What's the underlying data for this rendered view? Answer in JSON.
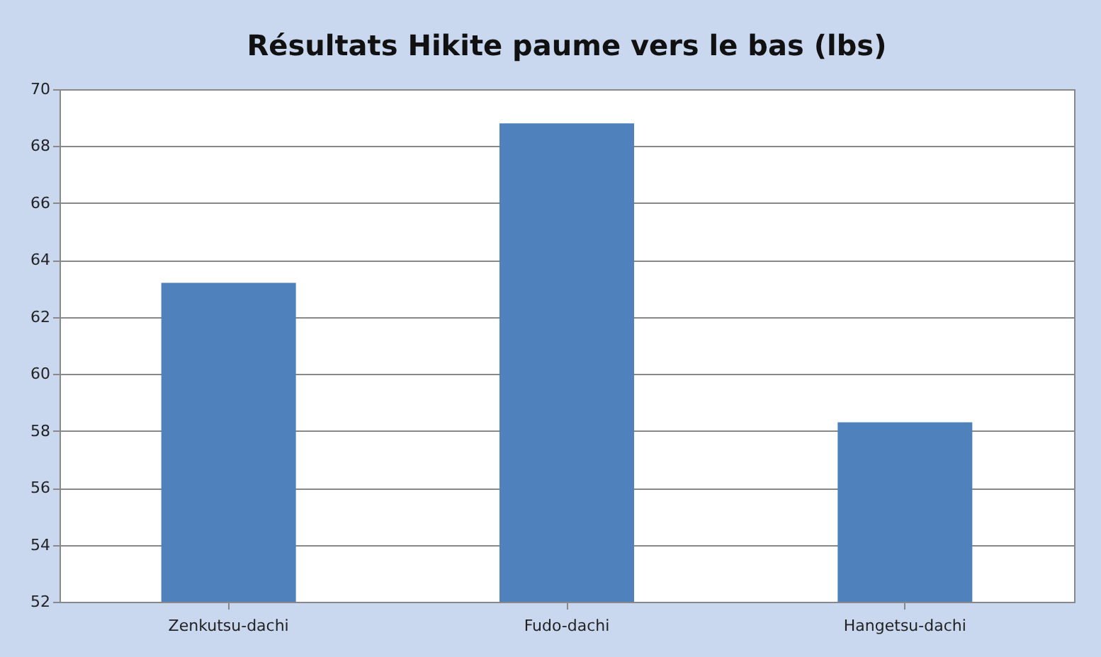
{
  "chart_data": {
    "type": "bar",
    "title": "Résultats Hikite paume vers le bas (lbs)",
    "categories": [
      "Zenkutsu-dachi",
      "Fudo-dachi",
      "Hangetsu-dachi"
    ],
    "values": [
      63.2,
      68.8,
      58.3
    ],
    "color": "#4f81bd",
    "ylim": [
      52,
      70
    ],
    "yticks": [
      52,
      54,
      56,
      58,
      60,
      62,
      64,
      66,
      68,
      70
    ],
    "grid": "y"
  }
}
